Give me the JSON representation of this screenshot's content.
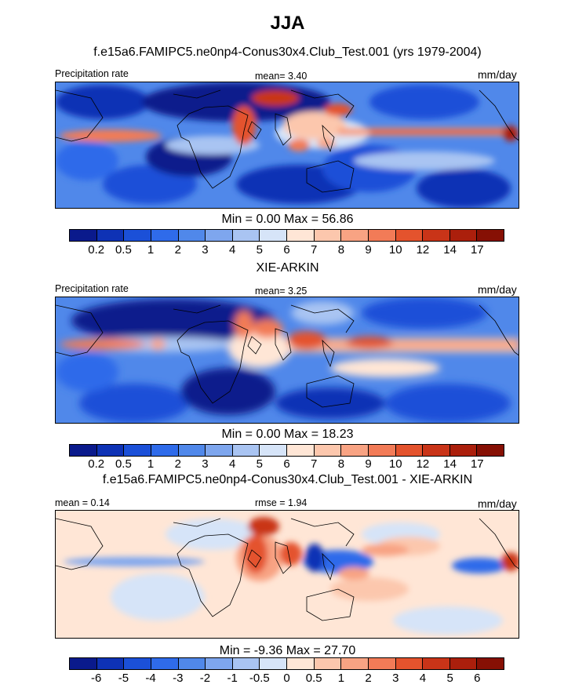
{
  "title": "JJA",
  "panels": [
    {
      "subtitle": "f.e15a6.FAMIPC5.ne0np4-Conus30x4.Club_Test.001 (yrs 1979-2004)",
      "left_label": "Precipitation rate",
      "center_label": "mean=   3.40",
      "right_label": "mm/day",
      "minmax": "Min =   0.00 Max =  56.86",
      "ticks": [
        "0.2",
        "0.5",
        "1",
        "2",
        "3",
        "4",
        "5",
        "6",
        "7",
        "8",
        "9",
        "10",
        "12",
        "14",
        "17"
      ],
      "colors": [
        "#0a1a8c",
        "#0e32b5",
        "#1b50d8",
        "#2f6bea",
        "#5088ea",
        "#7ea6ee",
        "#a9c4f2",
        "#d6e4f8",
        "#ffe6d6",
        "#fcc7ad",
        "#f8a383",
        "#f27b57",
        "#e4532d",
        "#c93418",
        "#ab1f0c",
        "#861004"
      ]
    },
    {
      "subtitle": "XIE-ARKIN",
      "left_label": "Precipitation rate",
      "center_label": "mean=   3.25",
      "right_label": "mm/day",
      "minmax": "Min =   0.00 Max =  18.23",
      "ticks": [
        "0.2",
        "0.5",
        "1",
        "2",
        "3",
        "4",
        "5",
        "6",
        "7",
        "8",
        "9",
        "10",
        "12",
        "14",
        "17"
      ],
      "colors": [
        "#0a1a8c",
        "#0e32b5",
        "#1b50d8",
        "#2f6bea",
        "#5088ea",
        "#7ea6ee",
        "#a9c4f2",
        "#d6e4f8",
        "#ffe6d6",
        "#fcc7ad",
        "#f8a383",
        "#f27b57",
        "#e4532d",
        "#c93418",
        "#ab1f0c",
        "#861004"
      ]
    },
    {
      "subtitle": "f.e15a6.FAMIPC5.ne0np4-Conus30x4.Club_Test.001 - XIE-ARKIN",
      "left_label": "mean =   0.14",
      "center_label": "rmse =   1.94",
      "right_label": "mm/day",
      "minmax": "Min =  -9.36 Max =  27.70",
      "ticks": [
        "-6",
        "-5",
        "-4",
        "-3",
        "-2",
        "-1",
        "-0.5",
        "0",
        "0.5",
        "1",
        "2",
        "3",
        "4",
        "5",
        "6"
      ],
      "colors": [
        "#0a1a8c",
        "#0e32b5",
        "#1b50d8",
        "#2f6bea",
        "#5088ea",
        "#7ea6ee",
        "#a9c4f2",
        "#d6e4f8",
        "#ffe6d6",
        "#fcc7ad",
        "#f8a383",
        "#f27b57",
        "#e4532d",
        "#c93418",
        "#ab1f0c",
        "#861004"
      ]
    }
  ]
}
